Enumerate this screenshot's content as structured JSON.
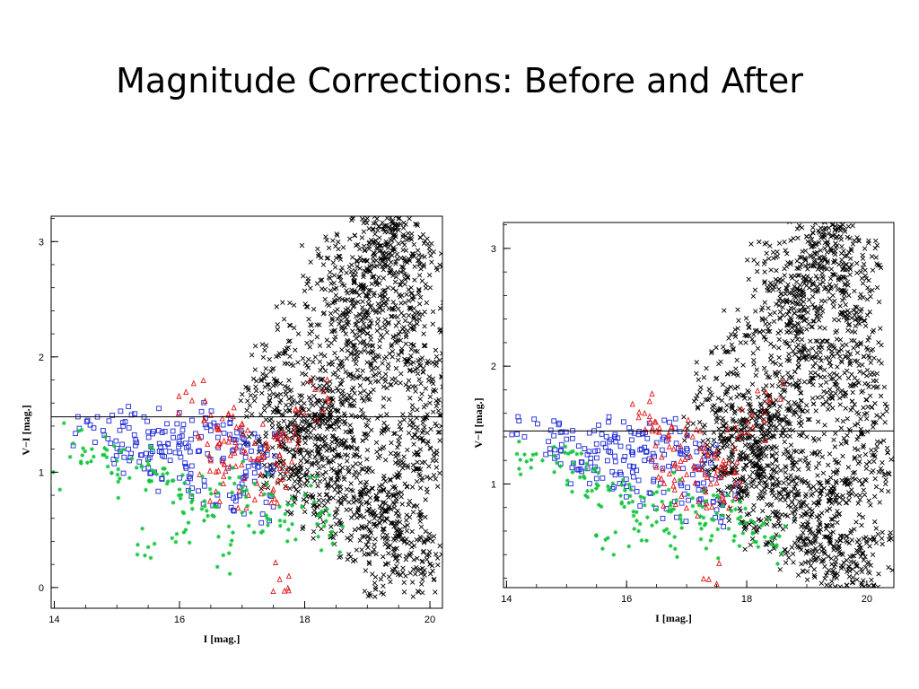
{
  "slide": {
    "title": "Magnitude Corrections: Before and After"
  },
  "chart_data": [
    {
      "type": "scatter",
      "title": "",
      "xlabel": "I [mag.]",
      "ylabel": "V−I [mag.]",
      "xlim": [
        13.95,
        20.2
      ],
      "ylim": [
        -0.18,
        3.22
      ],
      "x_ticks": [
        "14",
        "16",
        "18",
        "20"
      ],
      "y_ticks": [
        "0",
        "1",
        "2",
        "3"
      ],
      "reference_line": {
        "y": 1.48
      },
      "colors": {
        "black": "#000000",
        "blue": "#1f2bd6",
        "red": "#e01818",
        "green": "#12c43c"
      },
      "series": [
        {
          "marker": "cross",
          "color": "#000000",
          "x": [
            18.2,
            18.4,
            18.6,
            18.8,
            19.0,
            19.1,
            19.3,
            19.5,
            19.7,
            19.9,
            18.5,
            18.9,
            19.2,
            19.6,
            19.8,
            20.0,
            18.3,
            18.7,
            19.4,
            19.0,
            19.5,
            19.2,
            18.8,
            19.6,
            18.1,
            17.8,
            17.5,
            17.9,
            18.6,
            19.9,
            19.3,
            18.4,
            17.7,
            17.3,
            17.6,
            18.0,
            19.7,
            20.0,
            19.1,
            18.2,
            18.9,
            19.4,
            19.8,
            17.9,
            18.3,
            19.0,
            19.5,
            20.1,
            18.7,
            19.3
          ],
          "y": [
            1.2,
            1.5,
            1.8,
            2.1,
            2.4,
            2.7,
            2.9,
            3.1,
            2.6,
            2.2,
            1.0,
            0.8,
            0.6,
            0.9,
            1.3,
            1.6,
            1.7,
            2.3,
            2.0,
            1.4,
            1.1,
            0.7,
            0.5,
            0.4,
            1.3,
            1.6,
            1.9,
            2.2,
            2.5,
            2.8,
            3.0,
            1.4,
            1.2,
            1.5,
            1.1,
            0.9,
            0.3,
            0.2,
            1.9,
            0.7,
            2.6,
            3.1,
            1.9,
            1.4,
            2.8,
            3.2,
            2.3,
            1.1,
            1.0,
            0.2
          ]
        },
        {
          "marker": "square",
          "color": "#1f2bd6",
          "x": [
            14.4,
            14.8,
            15.1,
            15.3,
            15.5,
            15.7,
            15.9,
            16.1,
            16.3,
            16.5,
            16.7,
            16.9,
            17.1,
            17.3,
            15.2,
            15.6,
            16.0,
            16.4,
            16.8,
            17.2,
            17.5,
            15.8,
            16.2,
            16.6,
            17.0,
            17.4,
            14.9,
            15.4,
            16.1,
            16.9
          ],
          "y": [
            1.38,
            1.32,
            1.4,
            1.28,
            1.35,
            1.22,
            1.3,
            1.25,
            1.18,
            1.36,
            1.12,
            1.28,
            1.05,
            1.2,
            1.1,
            1.0,
            0.95,
            0.88,
            0.8,
            0.92,
            0.7,
            1.42,
            1.45,
            1.4,
            1.3,
            1.15,
            1.25,
            1.15,
            1.05,
            0.75
          ]
        },
        {
          "marker": "triangle",
          "color": "#e01818",
          "x": [
            16.2,
            16.4,
            16.6,
            16.8,
            17.0,
            17.2,
            17.4,
            17.6,
            16.5,
            16.9,
            17.3,
            17.7,
            18.0,
            18.3,
            16.7,
            17.1,
            17.5,
            17.6
          ],
          "y": [
            1.62,
            1.45,
            1.38,
            1.3,
            1.42,
            1.25,
            1.2,
            1.15,
            1.1,
            1.05,
            0.98,
            1.3,
            1.5,
            1.7,
            0.9,
            0.8,
            0.85,
            0.07
          ]
        },
        {
          "marker": "star",
          "color": "#12c43c",
          "x": [
            13.9,
            14.3,
            14.6,
            14.8,
            15.0,
            15.2,
            15.4,
            15.6,
            15.8,
            16.0,
            16.2,
            16.4,
            16.6,
            16.8,
            17.0,
            17.2,
            17.4,
            17.6,
            17.8,
            18.0,
            18.2,
            18.4,
            15.5,
            16.1,
            16.7
          ],
          "y": [
            0.88,
            1.25,
            1.2,
            1.15,
            1.1,
            0.95,
            1.05,
            1.0,
            0.9,
            0.85,
            0.8,
            0.75,
            0.7,
            0.95,
            0.65,
            0.9,
            0.6,
            0.7,
            0.55,
            0.8,
            0.55,
            0.45,
            0.35,
            0.5,
            0.28
          ]
        }
      ]
    },
    {
      "type": "scatter",
      "title": "",
      "xlabel": "I [mag.]",
      "ylabel": "V−I [mag.]",
      "xlim": [
        13.95,
        20.45
      ],
      "ylim": [
        0.12,
        3.22
      ],
      "x_ticks": [
        "14",
        "16",
        "18",
        "20"
      ],
      "y_ticks": [
        "1",
        "2",
        "3"
      ],
      "reference_line": {
        "y": 1.45
      },
      "colors": {
        "black": "#000000",
        "blue": "#1f2bd6",
        "red": "#e01818",
        "green": "#12c43c"
      },
      "series": [
        {
          "marker": "cross",
          "color": "#000000",
          "x": [
            18.2,
            18.4,
            18.6,
            18.8,
            19.0,
            19.1,
            19.3,
            19.5,
            19.7,
            19.9,
            18.5,
            18.9,
            19.2,
            19.6,
            19.8,
            20.0,
            18.3,
            18.7,
            19.4,
            19.0,
            19.5,
            19.2,
            18.8,
            19.6,
            18.1,
            17.8,
            17.5,
            17.9,
            18.6,
            19.9,
            19.3,
            18.4,
            17.7,
            17.3,
            17.6,
            18.0,
            19.7,
            20.1,
            19.1,
            18.2,
            18.9,
            19.4,
            19.8,
            17.9,
            18.3,
            19.0,
            19.5,
            20.2,
            18.7,
            19.3
          ],
          "y": [
            1.2,
            1.5,
            1.8,
            2.1,
            2.4,
            2.7,
            2.9,
            3.1,
            2.6,
            2.2,
            1.0,
            0.8,
            0.6,
            0.9,
            1.3,
            1.6,
            1.7,
            2.3,
            2.0,
            1.4,
            1.1,
            0.7,
            0.5,
            0.4,
            1.3,
            1.6,
            1.9,
            2.2,
            2.5,
            2.8,
            3.0,
            1.4,
            1.2,
            1.5,
            1.1,
            0.9,
            0.3,
            0.4,
            1.9,
            0.7,
            2.6,
            3.1,
            1.9,
            1.4,
            2.8,
            3.1,
            2.3,
            1.1,
            1.0,
            0.3
          ]
        },
        {
          "marker": "square",
          "color": "#1f2bd6",
          "x": [
            14.3,
            14.7,
            15.0,
            15.3,
            15.5,
            15.7,
            15.9,
            16.1,
            16.3,
            16.5,
            16.7,
            16.9,
            17.1,
            17.3,
            15.2,
            15.6,
            16.0,
            16.4,
            16.8,
            17.2,
            17.5,
            15.8,
            16.2,
            16.6,
            17.0,
            17.4,
            14.9,
            15.4,
            16.1,
            17.6
          ],
          "y": [
            1.4,
            1.36,
            1.38,
            1.3,
            1.34,
            1.28,
            1.32,
            1.25,
            1.2,
            1.35,
            1.15,
            1.28,
            1.08,
            1.2,
            1.12,
            1.05,
            0.98,
            0.92,
            0.85,
            0.95,
            0.78,
            1.4,
            1.42,
            1.38,
            1.3,
            1.18,
            1.28,
            1.18,
            1.1,
            0.82
          ]
        },
        {
          "marker": "triangle",
          "color": "#e01818",
          "x": [
            16.3,
            16.5,
            16.7,
            16.9,
            17.1,
            17.3,
            17.5,
            17.7,
            16.6,
            17.0,
            17.4,
            17.8,
            18.1,
            18.4,
            16.8,
            17.2,
            17.6,
            17.5
          ],
          "y": [
            1.6,
            1.45,
            1.38,
            1.32,
            1.4,
            1.28,
            1.22,
            1.18,
            1.12,
            1.08,
            1.0,
            1.3,
            1.48,
            1.72,
            0.95,
            0.85,
            0.9,
            0.15
          ]
        },
        {
          "marker": "star",
          "color": "#12c43c",
          "x": [
            14.3,
            14.6,
            14.9,
            15.1,
            15.3,
            15.5,
            15.7,
            15.9,
            16.1,
            16.3,
            16.5,
            16.7,
            16.9,
            17.1,
            17.3,
            17.5,
            17.7,
            17.9,
            18.1,
            18.3,
            15.6,
            16.2,
            16.8,
            17.4,
            18.5
          ],
          "y": [
            1.25,
            1.2,
            1.15,
            1.1,
            1.05,
            1.0,
            0.95,
            0.9,
            0.85,
            0.82,
            0.78,
            0.95,
            0.7,
            0.88,
            0.65,
            0.75,
            0.62,
            0.72,
            0.58,
            0.55,
            0.45,
            0.6,
            0.55,
            0.52,
            0.48
          ]
        }
      ]
    }
  ]
}
